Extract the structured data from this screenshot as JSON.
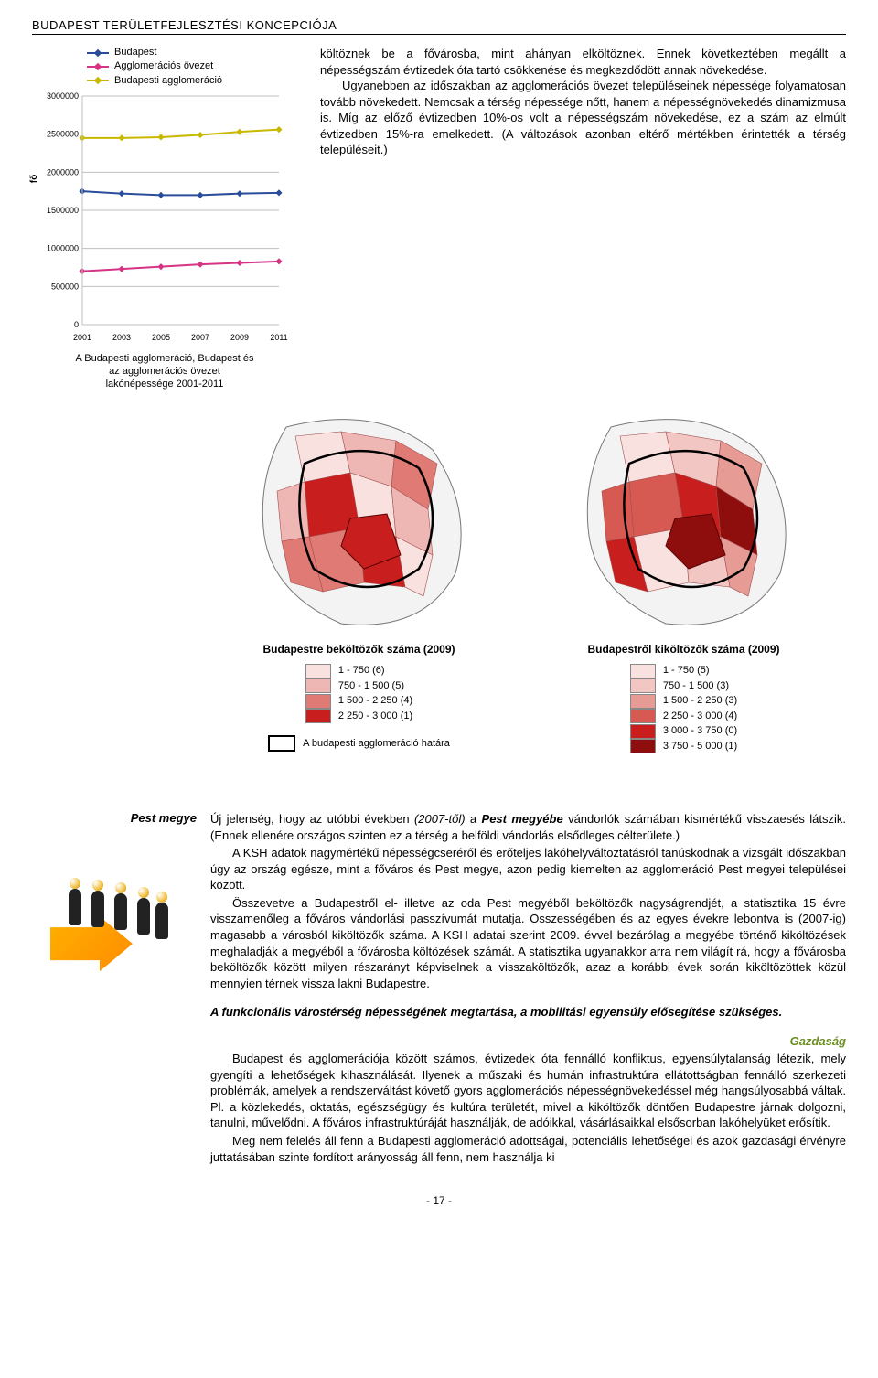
{
  "header": "BUDAPEST TERÜLETFEJLESZTÉSI KONCEPCIÓJA",
  "chart": {
    "type": "line",
    "y_axis_label": "fő",
    "legend": [
      "Budapest",
      "Agglomerációs övezet",
      "Budapesti agglomeráció"
    ],
    "legend_colors": [
      "#2a4d9b",
      "#d63384",
      "#c9b800"
    ],
    "x_ticks": [
      "2001",
      "2003",
      "2005",
      "2007",
      "2009",
      "2011"
    ],
    "y_ticks": [
      "0",
      "500000",
      "1000000",
      "1500000",
      "2000000",
      "2500000",
      "3000000"
    ],
    "ylim": [
      0,
      3000000
    ],
    "series": {
      "budapest": [
        1750000,
        1720000,
        1700000,
        1700000,
        1720000,
        1730000
      ],
      "ovezet": [
        700000,
        730000,
        760000,
        790000,
        810000,
        830000
      ],
      "agglomeracio": [
        2450000,
        2450000,
        2460000,
        2490000,
        2530000,
        2560000
      ]
    },
    "grid_color": "#bfbfbf",
    "background_color": "#ffffff",
    "line_width": 2,
    "marker_size": 5,
    "caption_l1": "A Budapesti agglomeráció, Budapest és",
    "caption_l2": "az agglomerációs övezet",
    "caption_l3": "lakónépessége 2001-2011"
  },
  "para1": "költöznek be a fővárosba, mint ahányan elköltöznek. Ennek következtében megállt a népességszám évtizedek óta tartó csökkenése és megkezdődött annak növekedése.",
  "para2": "Ugyanebben az időszakban az agglomerációs övezet településeinek népessége folyamatosan tovább növekedett. Nemcsak a térség népessége nőtt, hanem a népességnövekedés dinamizmusa is. Míg az előző évtizedben 10%-os volt a népességszám növekedése, ez a szám az elmúlt évtizedben 15%-ra emelkedett. (A változások azonban eltérő mértékben érintették a térség településeit.)",
  "map_left": {
    "title": "Budapestre beköltözők száma (2009)",
    "rows": [
      {
        "range": "1 -   750",
        "count": "(6)",
        "color": "#f8e1df"
      },
      {
        "range": "750 - 1 500",
        "count": "(5)",
        "color": "#efb7b3"
      },
      {
        "range": "1 500 - 2 250",
        "count": "(4)",
        "color": "#e07a74"
      },
      {
        "range": "2 250 - 3 000",
        "count": "(1)",
        "color": "#c81e1e"
      }
    ]
  },
  "map_right": {
    "title": "Budapestről kiköltözők száma (2009)",
    "rows": [
      {
        "range": "1 -   750",
        "count": "(5)",
        "color": "#f8e1df"
      },
      {
        "range": "750 - 1 500",
        "count": "(3)",
        "color": "#f2c7c3"
      },
      {
        "range": "1 500 - 2 250",
        "count": "(3)",
        "color": "#e69b95"
      },
      {
        "range": "2 250 - 3 000",
        "count": "(4)",
        "color": "#d65a52"
      },
      {
        "range": "3 000 - 3 750",
        "count": "(0)",
        "color": "#c81e1e"
      },
      {
        "range": "3 750 - 5 000",
        "count": "(1)",
        "color": "#8e0e0e"
      }
    ]
  },
  "map_border_label": "A budapesti agglomeráció határa",
  "margin_label": "Pest megye",
  "body_p1a": "Új jelenség, hogy az utóbbi években ",
  "body_p1b": "(2007-től)",
  "body_p1c": " a ",
  "body_p1d": "Pest megyébe",
  "body_p1e": " vándorlók számában kismértékű visszaesés látszik. (Ennek ellenére országos szinten ez a térség a belföldi vándorlás elsődleges célterülete.)",
  "body_p2": "A KSH adatok nagymértékű népességcseréről és erőteljes lakóhelyváltoztatásról tanúskodnak a vizsgált időszakban úgy az ország egésze, mint a főváros és Pest megye, azon pedig kiemelten az agglomeráció Pest megyei települései között.",
  "body_p3": "Összevetve a Budapestről el- illetve az oda Pest megyéből beköltözők nagyságrendjét, a statisztika 15 évre visszamenőleg a főváros vándorlási passzívumát mutatja. Összességében és az egyes évekre lebontva is (2007-ig) magasabb a városból kiköltözők száma. A KSH adatai szerint 2009. évvel bezárólag a megyébe történő kiköltözések meghaladják a megyéből a fővárosba költözések számát. A statisztika ugyanakkor arra nem világít rá, hogy a fővárosba beköltözők között milyen részarányt képviselnek a visszaköltözők, azaz a korábbi évek során kiköltözöttek közül mennyien térnek vissza lakni Budapestre.",
  "body_bold": "A funkcionális várostérség népességének megtartása, a mobilitási egyensúly elősegítése szükséges.",
  "section_head": "Gazdaság",
  "body_p4": "Budapest és agglomerációja között számos, évtizedek óta fennálló konfliktus, egyensúlytalanság létezik, mely gyengíti a lehetőségek kihasználását. Ilyenek a műszaki és humán infrastruktúra ellátottságban fennálló szerkezeti problémák, amelyek a rendszerváltást követő gyors agglomerációs népességnövekedéssel még hangsúlyosabbá váltak. Pl. a közlekedés, oktatás, egészségügy és kultúra területét, mivel a kiköltözők döntően Budapestre járnak dolgozni, tanulni, művelődni. A főváros infrastruktúráját használják, de adóikkal, vásárlásaikkal elsősorban lakóhelyüket erősítik.",
  "body_p5": "Meg nem felelés áll fenn a Budapesti agglomeráció adottságai, potenciális lehetőségei és azok gazdasági érvényre juttatásában szinte fordított arányosság áll fenn, nem használja ki",
  "pagenum": "- 17 -"
}
